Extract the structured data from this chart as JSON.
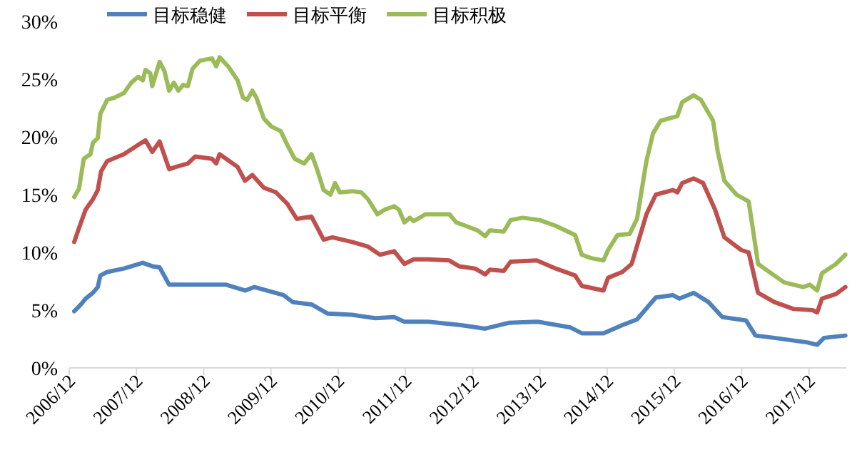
{
  "chart_data": {
    "type": "line",
    "legend": "top",
    "grid": false,
    "marker": "none",
    "line_style": "solid",
    "xlim": [
      "2006-12-01",
      "2018-06-22"
    ],
    "xticks": [
      {
        "value": "2006-12-01",
        "label": "2006/12"
      },
      {
        "value": "2007-12-01",
        "label": "2007/12"
      },
      {
        "value": "2008-12-01",
        "label": "2008/12"
      },
      {
        "value": "2009-12-01",
        "label": "2009/12"
      },
      {
        "value": "2010-12-01",
        "label": "2010/12"
      },
      {
        "value": "2011-12-01",
        "label": "2011/12"
      },
      {
        "value": "2012-12-01",
        "label": "2012/12"
      },
      {
        "value": "2013-12-01",
        "label": "2013/12"
      },
      {
        "value": "2014-12-01",
        "label": "2014/12"
      },
      {
        "value": "2015-12-01",
        "label": "2015/12"
      },
      {
        "value": "2016-12-01",
        "label": "2016/12"
      },
      {
        "value": "2017-12-01",
        "label": "2017/12"
      }
    ],
    "ylim": [
      0,
      30
    ],
    "yticks": [
      {
        "value": 0,
        "label": "0%"
      },
      {
        "value": 5,
        "label": "5%"
      },
      {
        "value": 10,
        "label": "10%"
      },
      {
        "value": 15,
        "label": "15%"
      },
      {
        "value": 20,
        "label": "20%"
      },
      {
        "value": 25,
        "label": "25%"
      },
      {
        "value": 30,
        "label": "30%"
      }
    ],
    "series": [
      {
        "name": "目标稳健",
        "color": "#4f81bd",
        "x": [
          "2006-12-28",
          "2007-02-03",
          "2007-02-28",
          "2007-04-09",
          "2007-05-05",
          "2007-05-19",
          "2007-06-25",
          "2007-09-24",
          "2008-01-04",
          "2008-02-25",
          "2008-04-05",
          "2008-05-27",
          "2008-09-20",
          "2009-01-15",
          "2009-04-02",
          "2009-07-13",
          "2009-09-02",
          "2010-02-07",
          "2010-03-29",
          "2010-07-09",
          "2010-10-05",
          "2011-02-14",
          "2011-06-21",
          "2011-10-01",
          "2011-11-25",
          "2012-03-19",
          "2012-04-02",
          "2012-09-28",
          "2013-02-07",
          "2013-06-14",
          "2013-11-18",
          "2014-05-16",
          "2014-07-16",
          "2014-11-11",
          "2015-02-21",
          "2015-05-12",
          "2015-08-22",
          "2015-11-22",
          "2015-12-28",
          "2016-03-15",
          "2016-06-03",
          "2016-08-18",
          "2016-12-25",
          "2017-02-14",
          "2017-05-27",
          "2017-11-25",
          "2018-01-15",
          "2018-02-21",
          "2018-06-17"
        ],
        "values": [
          4.9,
          5.5,
          6.0,
          6.5,
          7.0,
          8.0,
          8.3,
          8.6,
          9.1,
          8.8,
          8.7,
          7.2,
          7.2,
          7.2,
          7.2,
          6.7,
          7.0,
          6.3,
          5.7,
          5.5,
          4.7,
          4.6,
          4.3,
          4.4,
          4.0,
          4.0,
          4.0,
          3.7,
          3.4,
          3.9,
          4.0,
          3.5,
          3.0,
          3.0,
          3.7,
          4.2,
          6.1,
          6.3,
          6.0,
          6.5,
          5.7,
          4.4,
          4.1,
          2.8,
          2.6,
          2.2,
          2.0,
          2.6,
          2.8
        ]
      },
      {
        "name": "目标平衡",
        "color": "#c0504d",
        "x": [
          "2006-12-28",
          "2007-01-23",
          "2007-02-28",
          "2007-04-09",
          "2007-05-05",
          "2007-05-23",
          "2007-06-25",
          "2007-09-24",
          "2007-12-10",
          "2008-01-19",
          "2008-02-25",
          "2008-04-05",
          "2008-05-27",
          "2008-07-02",
          "2008-09-06",
          "2008-10-16",
          "2009-01-15",
          "2009-02-07",
          "2009-02-25",
          "2009-06-03",
          "2009-07-13",
          "2009-08-22",
          "2009-10-23",
          "2009-12-28",
          "2010-02-28",
          "2010-04-20",
          "2010-07-09",
          "2010-09-13",
          "2010-10-31",
          "2011-02-14",
          "2011-05-12",
          "2011-07-16",
          "2011-10-01",
          "2011-11-25",
          "2012-01-15",
          "2012-03-19",
          "2012-04-02",
          "2012-07-27",
          "2012-09-17",
          "2012-12-14",
          "2013-02-07",
          "2013-03-04",
          "2013-05-19",
          "2013-06-25",
          "2013-11-14",
          "2014-02-25",
          "2014-06-10",
          "2014-07-16",
          "2014-11-11",
          "2014-12-06",
          "2015-02-21",
          "2015-04-13",
          "2015-07-02",
          "2015-08-22",
          "2015-11-22",
          "2015-12-17",
          "2016-01-12",
          "2016-03-15",
          "2016-05-05",
          "2016-07-09",
          "2016-08-29",
          "2016-11-29",
          "2017-01-08",
          "2017-02-28",
          "2017-05-27",
          "2017-09-09",
          "2017-12-21",
          "2018-01-15",
          "2018-02-10",
          "2018-04-27",
          "2018-06-17"
        ],
        "values": [
          10.9,
          12.1,
          13.7,
          14.6,
          15.4,
          17.0,
          17.9,
          18.5,
          19.3,
          19.7,
          18.7,
          19.6,
          17.2,
          17.4,
          17.7,
          18.3,
          18.1,
          17.7,
          18.5,
          17.4,
          16.2,
          16.7,
          15.6,
          15.2,
          14.2,
          12.9,
          13.1,
          11.1,
          11.3,
          10.9,
          10.5,
          9.8,
          10.1,
          9.0,
          9.4,
          9.4,
          9.4,
          9.3,
          8.8,
          8.6,
          8.1,
          8.5,
          8.4,
          9.2,
          9.3,
          8.6,
          8.0,
          7.1,
          6.7,
          7.8,
          8.3,
          9.0,
          13.3,
          15.0,
          15.4,
          15.2,
          16.0,
          16.4,
          16.0,
          13.7,
          11.3,
          10.2,
          10.0,
          6.5,
          5.7,
          5.1,
          5.0,
          4.8,
          6.0,
          6.4,
          7.0
        ]
      },
      {
        "name": "目标积极",
        "color": "#9bbb59",
        "x": [
          "2006-12-28",
          "2007-01-23",
          "2007-02-18",
          "2007-03-26",
          "2007-04-09",
          "2007-05-05",
          "2007-05-19",
          "2007-06-25",
          "2007-08-04",
          "2007-09-24",
          "2007-11-03",
          "2007-12-10",
          "2008-01-04",
          "2008-01-19",
          "2008-02-14",
          "2008-02-25",
          "2008-04-05",
          "2008-05-01",
          "2008-05-27",
          "2008-06-21",
          "2008-07-16",
          "2008-08-11",
          "2008-09-06",
          "2008-10-01",
          "2008-11-11",
          "2009-01-15",
          "2009-02-07",
          "2009-02-25",
          "2009-04-13",
          "2009-06-03",
          "2009-07-02",
          "2009-07-24",
          "2009-08-22",
          "2009-09-13",
          "2009-10-23",
          "2009-12-03",
          "2010-01-23",
          "2010-02-28",
          "2010-04-09",
          "2010-05-30",
          "2010-07-09",
          "2010-08-04",
          "2010-09-13",
          "2010-10-20",
          "2010-11-14",
          "2010-12-10",
          "2011-02-14",
          "2011-04-05",
          "2011-05-12",
          "2011-07-02",
          "2011-08-11",
          "2011-10-01",
          "2011-10-27",
          "2011-11-25",
          "2011-12-25",
          "2012-01-15",
          "2012-03-19",
          "2012-04-02",
          "2012-07-27",
          "2012-09-02",
          "2012-10-23",
          "2012-12-28",
          "2013-02-07",
          "2013-03-04",
          "2013-05-19",
          "2013-06-25",
          "2013-08-29",
          "2013-11-29",
          "2014-02-25",
          "2014-06-10",
          "2014-07-16",
          "2014-09-06",
          "2014-11-11",
          "2014-12-06",
          "2015-01-26",
          "2015-04-02",
          "2015-05-12",
          "2015-07-02",
          "2015-08-07",
          "2015-09-17",
          "2015-12-17",
          "2016-01-12",
          "2016-03-15",
          "2016-04-24",
          "2016-06-28",
          "2016-07-24",
          "2016-08-29",
          "2016-11-03",
          "2017-01-08",
          "2017-02-03",
          "2017-02-28",
          "2017-05-27",
          "2017-07-20",
          "2017-10-31",
          "2017-12-06",
          "2018-01-15",
          "2018-02-10",
          "2018-04-27",
          "2018-06-17"
        ],
        "values": [
          14.8,
          15.5,
          18.1,
          18.5,
          19.5,
          19.9,
          22.0,
          23.2,
          23.4,
          23.8,
          24.7,
          25.2,
          24.9,
          25.8,
          25.5,
          24.4,
          26.5,
          25.7,
          24.0,
          24.7,
          24.0,
          24.5,
          24.4,
          25.9,
          26.6,
          26.8,
          26.1,
          26.9,
          26.1,
          24.9,
          23.4,
          23.2,
          24.0,
          23.4,
          21.6,
          20.9,
          20.5,
          19.3,
          18.1,
          17.7,
          18.5,
          17.4,
          15.4,
          15.0,
          16.0,
          15.2,
          15.3,
          15.2,
          14.6,
          13.3,
          13.7,
          14.0,
          13.7,
          12.6,
          13.0,
          12.7,
          13.3,
          13.3,
          13.3,
          12.6,
          12.3,
          11.9,
          11.4,
          11.9,
          11.8,
          12.8,
          13.0,
          12.8,
          12.3,
          11.5,
          9.8,
          9.5,
          9.3,
          10.2,
          11.5,
          11.6,
          12.9,
          17.9,
          20.3,
          21.4,
          21.8,
          23.0,
          23.6,
          23.2,
          21.4,
          18.7,
          16.2,
          15.0,
          14.4,
          11.7,
          9.0,
          8.0,
          7.4,
          7.0,
          7.2,
          6.7,
          8.2,
          9.0,
          9.8
        ]
      }
    ]
  }
}
